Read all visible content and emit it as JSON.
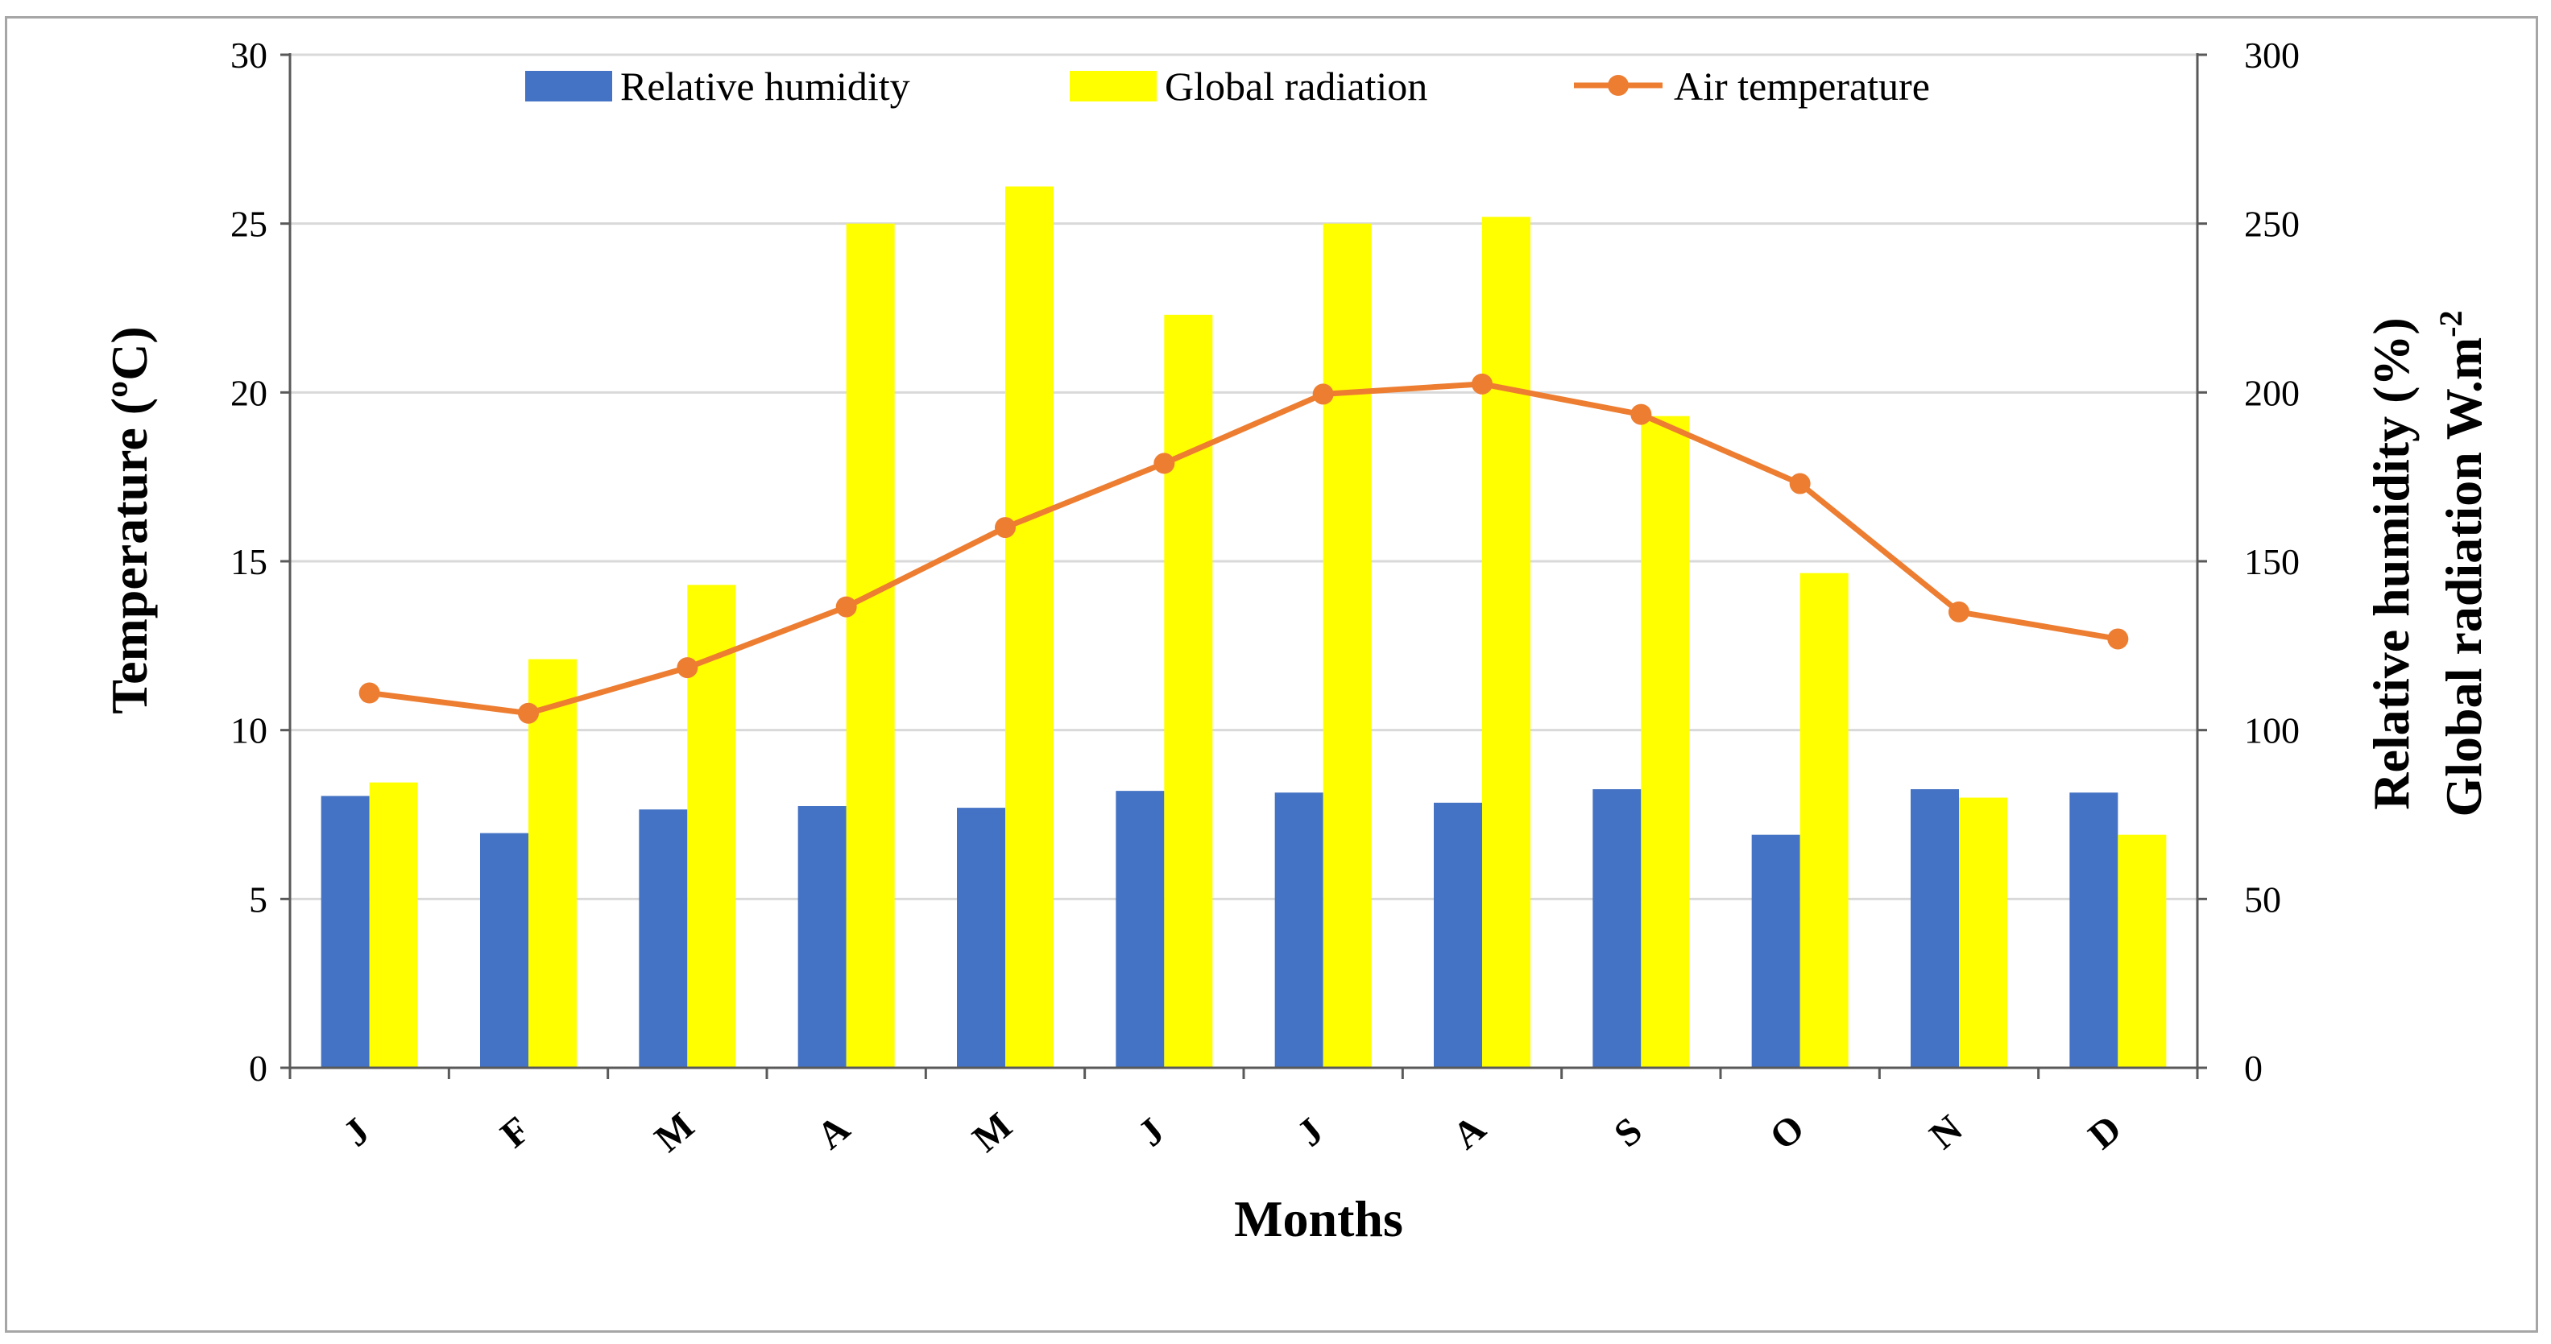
{
  "chart_data": {
    "type": "bar",
    "title": "",
    "categories": [
      "J",
      "F",
      "M",
      "A",
      "M",
      "J",
      "J",
      "A",
      "S",
      "O",
      "N",
      "D"
    ],
    "xlabel": "Months",
    "ylabel_left": "Temperature (ºC)",
    "ylabel_right_line1": "Relative humidity (%)",
    "ylabel_right_line2": "Global radiation W.m",
    "ylabel_right_superscript": "-2",
    "ylim_left": [
      0,
      30
    ],
    "ylim_right": [
      0,
      300
    ],
    "yticks_left": [
      "0",
      "5",
      "10",
      "15",
      "20",
      "25",
      "30"
    ],
    "yticks_right": [
      "0",
      "50",
      "100",
      "150",
      "200",
      "250",
      "300"
    ],
    "grid": true,
    "legend_position": "top",
    "series": [
      {
        "name": "Relative humidity",
        "type": "bar",
        "axis": "right",
        "color": "#4472c4",
        "values": [
          80.5,
          69.5,
          76.5,
          77.5,
          77,
          82,
          81.5,
          78.5,
          82.5,
          69,
          82.5,
          81.5
        ]
      },
      {
        "name": "Global radiation",
        "type": "bar",
        "axis": "right",
        "color": "#ffff00",
        "values": [
          84.5,
          121,
          143,
          250,
          261,
          223,
          250,
          252,
          193,
          146.5,
          80,
          69
        ]
      },
      {
        "name": "Air temperature",
        "type": "line",
        "axis": "left",
        "color": "#ed7d31",
        "values": [
          11.1,
          10.5,
          11.85,
          13.65,
          16.0,
          17.9,
          19.95,
          20.25,
          19.35,
          17.3,
          13.5,
          12.7
        ]
      }
    ]
  }
}
